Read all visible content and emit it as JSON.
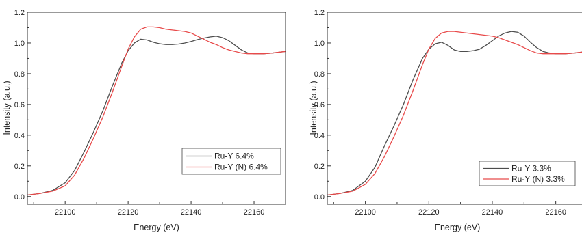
{
  "chart_data": [
    {
      "type": "line",
      "title": "",
      "xlabel": "Energy (eV)",
      "ylabel": "Intensity (a.u.)",
      "xlim": [
        22088,
        22170
      ],
      "ylim": [
        -0.05,
        1.2
      ],
      "xticks": [
        22100,
        22120,
        22140,
        22160
      ],
      "yticks": [
        0.0,
        0.2,
        0.4,
        0.6,
        0.8,
        1.0,
        1.2
      ],
      "xtick_labels": [
        "22100",
        "22120",
        "22140",
        "22160"
      ],
      "ytick_labels": [
        "0.0",
        "0.2",
        "0.4",
        "0.6",
        "0.8",
        "1.0",
        "1.2"
      ],
      "grid": false,
      "legend_position": "lower-right",
      "series": [
        {
          "name": "Ru-Y 6.4%",
          "color": "#4d4d4d",
          "x": [
            22088,
            22092,
            22096,
            22100,
            22103,
            22106,
            22109,
            22112,
            22115,
            22118,
            22120,
            22122,
            22124,
            22126,
            22128,
            22130,
            22132,
            22134,
            22136,
            22138,
            22140,
            22142,
            22144,
            22146,
            22148,
            22150,
            22152,
            22154,
            22156,
            22158,
            22160,
            22163,
            22166,
            22170
          ],
          "y": [
            0.01,
            0.02,
            0.04,
            0.09,
            0.17,
            0.29,
            0.42,
            0.56,
            0.72,
            0.87,
            0.95,
            1.0,
            1.025,
            1.02,
            1.005,
            0.995,
            0.99,
            0.99,
            0.993,
            1.0,
            1.01,
            1.022,
            1.032,
            1.04,
            1.045,
            1.035,
            1.015,
            0.985,
            0.955,
            0.935,
            0.93,
            0.93,
            0.935,
            0.945
          ]
        },
        {
          "name": "Ru-Y (N) 6.4%",
          "color": "#e84a4a",
          "x": [
            22088,
            22092,
            22096,
            22100,
            22103,
            22106,
            22109,
            22112,
            22115,
            22118,
            22120,
            22122,
            22124,
            22126,
            22128,
            22130,
            22132,
            22134,
            22136,
            22138,
            22140,
            22142,
            22144,
            22146,
            22148,
            22150,
            22152,
            22154,
            22156,
            22158,
            22160,
            22163,
            22166,
            22170
          ],
          "y": [
            0.01,
            0.02,
            0.035,
            0.07,
            0.14,
            0.25,
            0.38,
            0.52,
            0.68,
            0.85,
            0.96,
            1.04,
            1.09,
            1.105,
            1.105,
            1.1,
            1.09,
            1.085,
            1.08,
            1.075,
            1.065,
            1.045,
            1.025,
            1.005,
            0.99,
            0.97,
            0.955,
            0.945,
            0.935,
            0.93,
            0.93,
            0.93,
            0.935,
            0.945
          ]
        }
      ]
    },
    {
      "type": "line",
      "title": "",
      "xlabel": "Energy (eV)",
      "ylabel": "Intensity (a.u.)",
      "xlim": [
        22088,
        22170
      ],
      "ylim": [
        -0.05,
        1.2
      ],
      "xticks": [
        22100,
        22120,
        22140,
        22160
      ],
      "yticks": [
        0.0,
        0.2,
        0.4,
        0.6,
        0.8,
        1.0,
        1.2
      ],
      "xtick_labels": [
        "22100",
        "22120",
        "22140",
        "22160"
      ],
      "ytick_labels": [
        "0.0",
        "0.2",
        "0.4",
        "0.6",
        "0.8",
        "1.0",
        "1.2"
      ],
      "grid": false,
      "legend_position": "lower-right",
      "series": [
        {
          "name": "Ru-Y 3.3%",
          "color": "#4d4d4d",
          "x": [
            22088,
            22092,
            22096,
            22100,
            22103,
            22106,
            22109,
            22112,
            22115,
            22118,
            22120,
            22122,
            22124,
            22126,
            22128,
            22130,
            22132,
            22134,
            22136,
            22138,
            22140,
            22142,
            22144,
            22146,
            22148,
            22150,
            22152,
            22154,
            22156,
            22158,
            22160,
            22163,
            22166,
            22170
          ],
          "y": [
            0.01,
            0.02,
            0.04,
            0.1,
            0.19,
            0.33,
            0.46,
            0.6,
            0.76,
            0.9,
            0.96,
            0.995,
            1.005,
            0.985,
            0.955,
            0.945,
            0.945,
            0.95,
            0.96,
            0.985,
            1.015,
            1.045,
            1.065,
            1.075,
            1.07,
            1.045,
            1.005,
            0.97,
            0.945,
            0.935,
            0.93,
            0.93,
            0.935,
            0.945
          ]
        },
        {
          "name": "Ru-Y (N) 3.3%",
          "color": "#e84a4a",
          "x": [
            22088,
            22092,
            22096,
            22100,
            22103,
            22106,
            22109,
            22112,
            22115,
            22118,
            22120,
            22122,
            22124,
            22126,
            22128,
            22130,
            22132,
            22134,
            22136,
            22138,
            22140,
            22142,
            22144,
            22146,
            22148,
            22150,
            22152,
            22154,
            22156,
            22158,
            22160,
            22163,
            22166,
            22170
          ],
          "y": [
            0.01,
            0.02,
            0.035,
            0.08,
            0.15,
            0.26,
            0.39,
            0.53,
            0.69,
            0.86,
            0.96,
            1.03,
            1.065,
            1.075,
            1.075,
            1.07,
            1.065,
            1.06,
            1.055,
            1.05,
            1.045,
            1.035,
            1.02,
            1.005,
            0.99,
            0.97,
            0.95,
            0.935,
            0.93,
            0.93,
            0.93,
            0.93,
            0.935,
            0.945
          ]
        }
      ]
    }
  ]
}
